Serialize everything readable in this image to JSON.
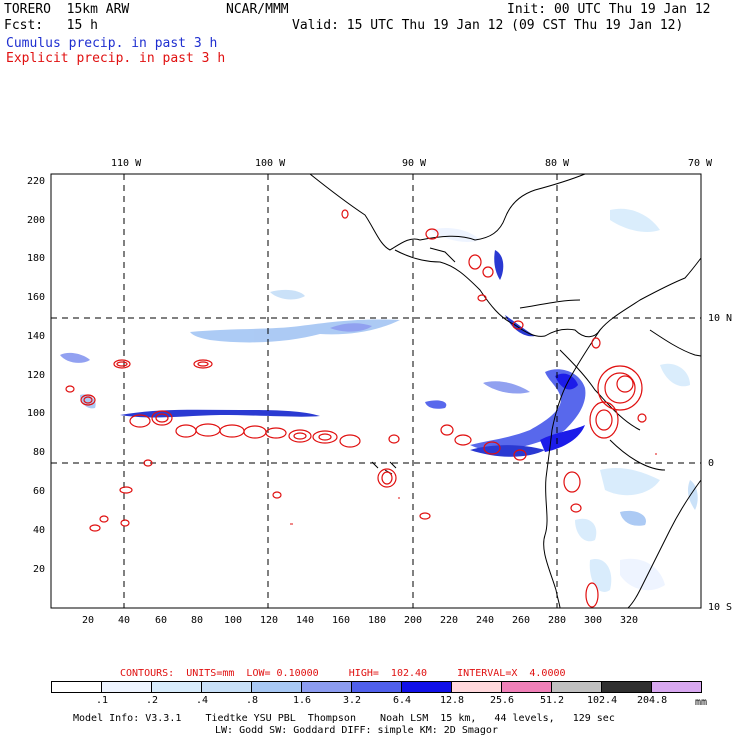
{
  "header": {
    "model_line": "TORERO  15km ARW",
    "org": "NCAR/MMM",
    "init": "Init: 00 UTC Thu 19 Jan 12",
    "fcst": "Fcst:   15 h",
    "valid": "Valid: 15 UTC Thu 19 Jan 12 (09 CST Thu 19 Jan 12)",
    "cumulus": "Cumulus precip. in past 3 h",
    "explicit": "Explicit precip. in past 3 h"
  },
  "colors": {
    "cumulus_text": "#1f2fd0",
    "explicit_text": "#e01010",
    "contour": "#e01010",
    "coast": "#000000"
  },
  "top_lon_labels": [
    "110 W",
    "100 W",
    "90 W",
    "80 W",
    "70 W"
  ],
  "right_lat_labels": [
    "10 N",
    "0",
    "10 S"
  ],
  "left_ticks": [
    "220",
    "200",
    "180",
    "160",
    "140",
    "120",
    "100",
    "80",
    "60",
    "40",
    "20"
  ],
  "bottom_ticks": [
    "20",
    "40",
    "60",
    "80",
    "100",
    "120",
    "140",
    "160",
    "180",
    "200",
    "220",
    "240",
    "260",
    "280",
    "300",
    "320"
  ],
  "contours_line": "CONTOURS:  UNITS=mm  LOW= 0.10000     HIGH=  102.40     INTERVAL=X  4.0000",
  "legend": {
    "labels": [
      ".1",
      ".2",
      ".4",
      ".8",
      "1.6",
      "3.2",
      "6.4",
      "12.8",
      "25.6",
      "51.2",
      "102.4",
      "204.8"
    ],
    "unit": "mm",
    "colors": [
      "#ffffff",
      "#eef4ff",
      "#d8ecfc",
      "#c8e0f8",
      "#a8c8f4",
      "#8c9cf0",
      "#5060ec",
      "#1010e8",
      "#ffd8dc",
      "#f080b8",
      "#c0c0c0",
      "#303030",
      "#d8a8f0"
    ]
  },
  "footer": {
    "line1": "Model Info: V3.3.1    Tiedtke YSU PBL  Thompson    Noah LSM  15 km,   44 levels,   129 sec",
    "line2": "LW: Godd SW: Goddard DIFF: simple KM: 2D Smagor"
  }
}
